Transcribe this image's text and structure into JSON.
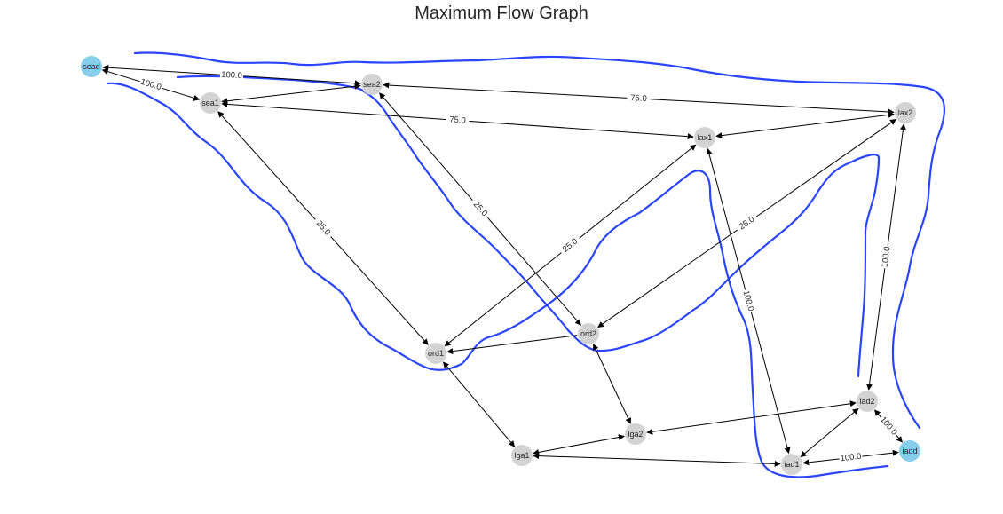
{
  "diagram": {
    "title": "Maximum Flow Graph",
    "colors": {
      "node_default": "#d3d3d3",
      "node_terminal": "#87ceeb",
      "edge": "#000000",
      "cut_line": "#2040ff",
      "text": "#262626"
    },
    "nodes": [
      {
        "id": "sead",
        "label": "sead",
        "kind": "terminal"
      },
      {
        "id": "sea1",
        "label": "sea1",
        "kind": "default"
      },
      {
        "id": "sea2",
        "label": "sea2",
        "kind": "default"
      },
      {
        "id": "lax1",
        "label": "lax1",
        "kind": "default"
      },
      {
        "id": "lax2",
        "label": "lax2",
        "kind": "default"
      },
      {
        "id": "ord1",
        "label": "ord1",
        "kind": "default"
      },
      {
        "id": "ord2",
        "label": "ord2",
        "kind": "default"
      },
      {
        "id": "lga1",
        "label": "lga1",
        "kind": "default"
      },
      {
        "id": "lga2",
        "label": "lga2",
        "kind": "default"
      },
      {
        "id": "iad1",
        "label": "iad1",
        "kind": "default"
      },
      {
        "id": "iad2",
        "label": "iad2",
        "kind": "default"
      },
      {
        "id": "iadd",
        "label": "iadd",
        "kind": "terminal"
      }
    ],
    "edges": [
      {
        "from": "sead",
        "to": "sea2",
        "label": "100.0",
        "bidirectional": true
      },
      {
        "from": "sead",
        "to": "sea1",
        "label": "100.0",
        "bidirectional": true
      },
      {
        "from": "sea1",
        "to": "sea2",
        "label": "",
        "bidirectional": true
      },
      {
        "from": "sea2",
        "to": "lax2",
        "label": "75.0",
        "bidirectional": true
      },
      {
        "from": "sea1",
        "to": "lax1",
        "label": "75.0",
        "bidirectional": true
      },
      {
        "from": "sea1",
        "to": "ord1",
        "label": "25.0",
        "bidirectional": true
      },
      {
        "from": "sea2",
        "to": "ord2",
        "label": "25.0",
        "bidirectional": true
      },
      {
        "from": "ord1",
        "to": "lax1",
        "label": "25.0",
        "bidirectional": true
      },
      {
        "from": "ord2",
        "to": "lax2",
        "label": "25.0",
        "bidirectional": true
      },
      {
        "from": "lax1",
        "to": "lax2",
        "label": "",
        "bidirectional": true
      },
      {
        "from": "ord2",
        "to": "ord1",
        "label": "",
        "bidirectional": false
      },
      {
        "from": "lax1",
        "to": "iad1",
        "label": "100.0",
        "bidirectional": true
      },
      {
        "from": "lax2",
        "to": "iad2",
        "label": "100.0",
        "bidirectional": true
      },
      {
        "from": "ord1",
        "to": "lga1",
        "label": "",
        "bidirectional": true
      },
      {
        "from": "ord2",
        "to": "lga2",
        "label": "",
        "bidirectional": true
      },
      {
        "from": "lga1",
        "to": "lga2",
        "label": "",
        "bidirectional": true
      },
      {
        "from": "lga2",
        "to": "iad2",
        "label": "",
        "bidirectional": true
      },
      {
        "from": "lga1",
        "to": "iad1",
        "label": "",
        "bidirectional": true
      },
      {
        "from": "iad1",
        "to": "iad2",
        "label": "",
        "bidirectional": true
      },
      {
        "from": "iad1",
        "to": "iadd",
        "label": "100.0",
        "bidirectional": true
      },
      {
        "from": "iad2",
        "to": "iadd",
        "label": "100.0",
        "bidirectional": true
      }
    ]
  }
}
